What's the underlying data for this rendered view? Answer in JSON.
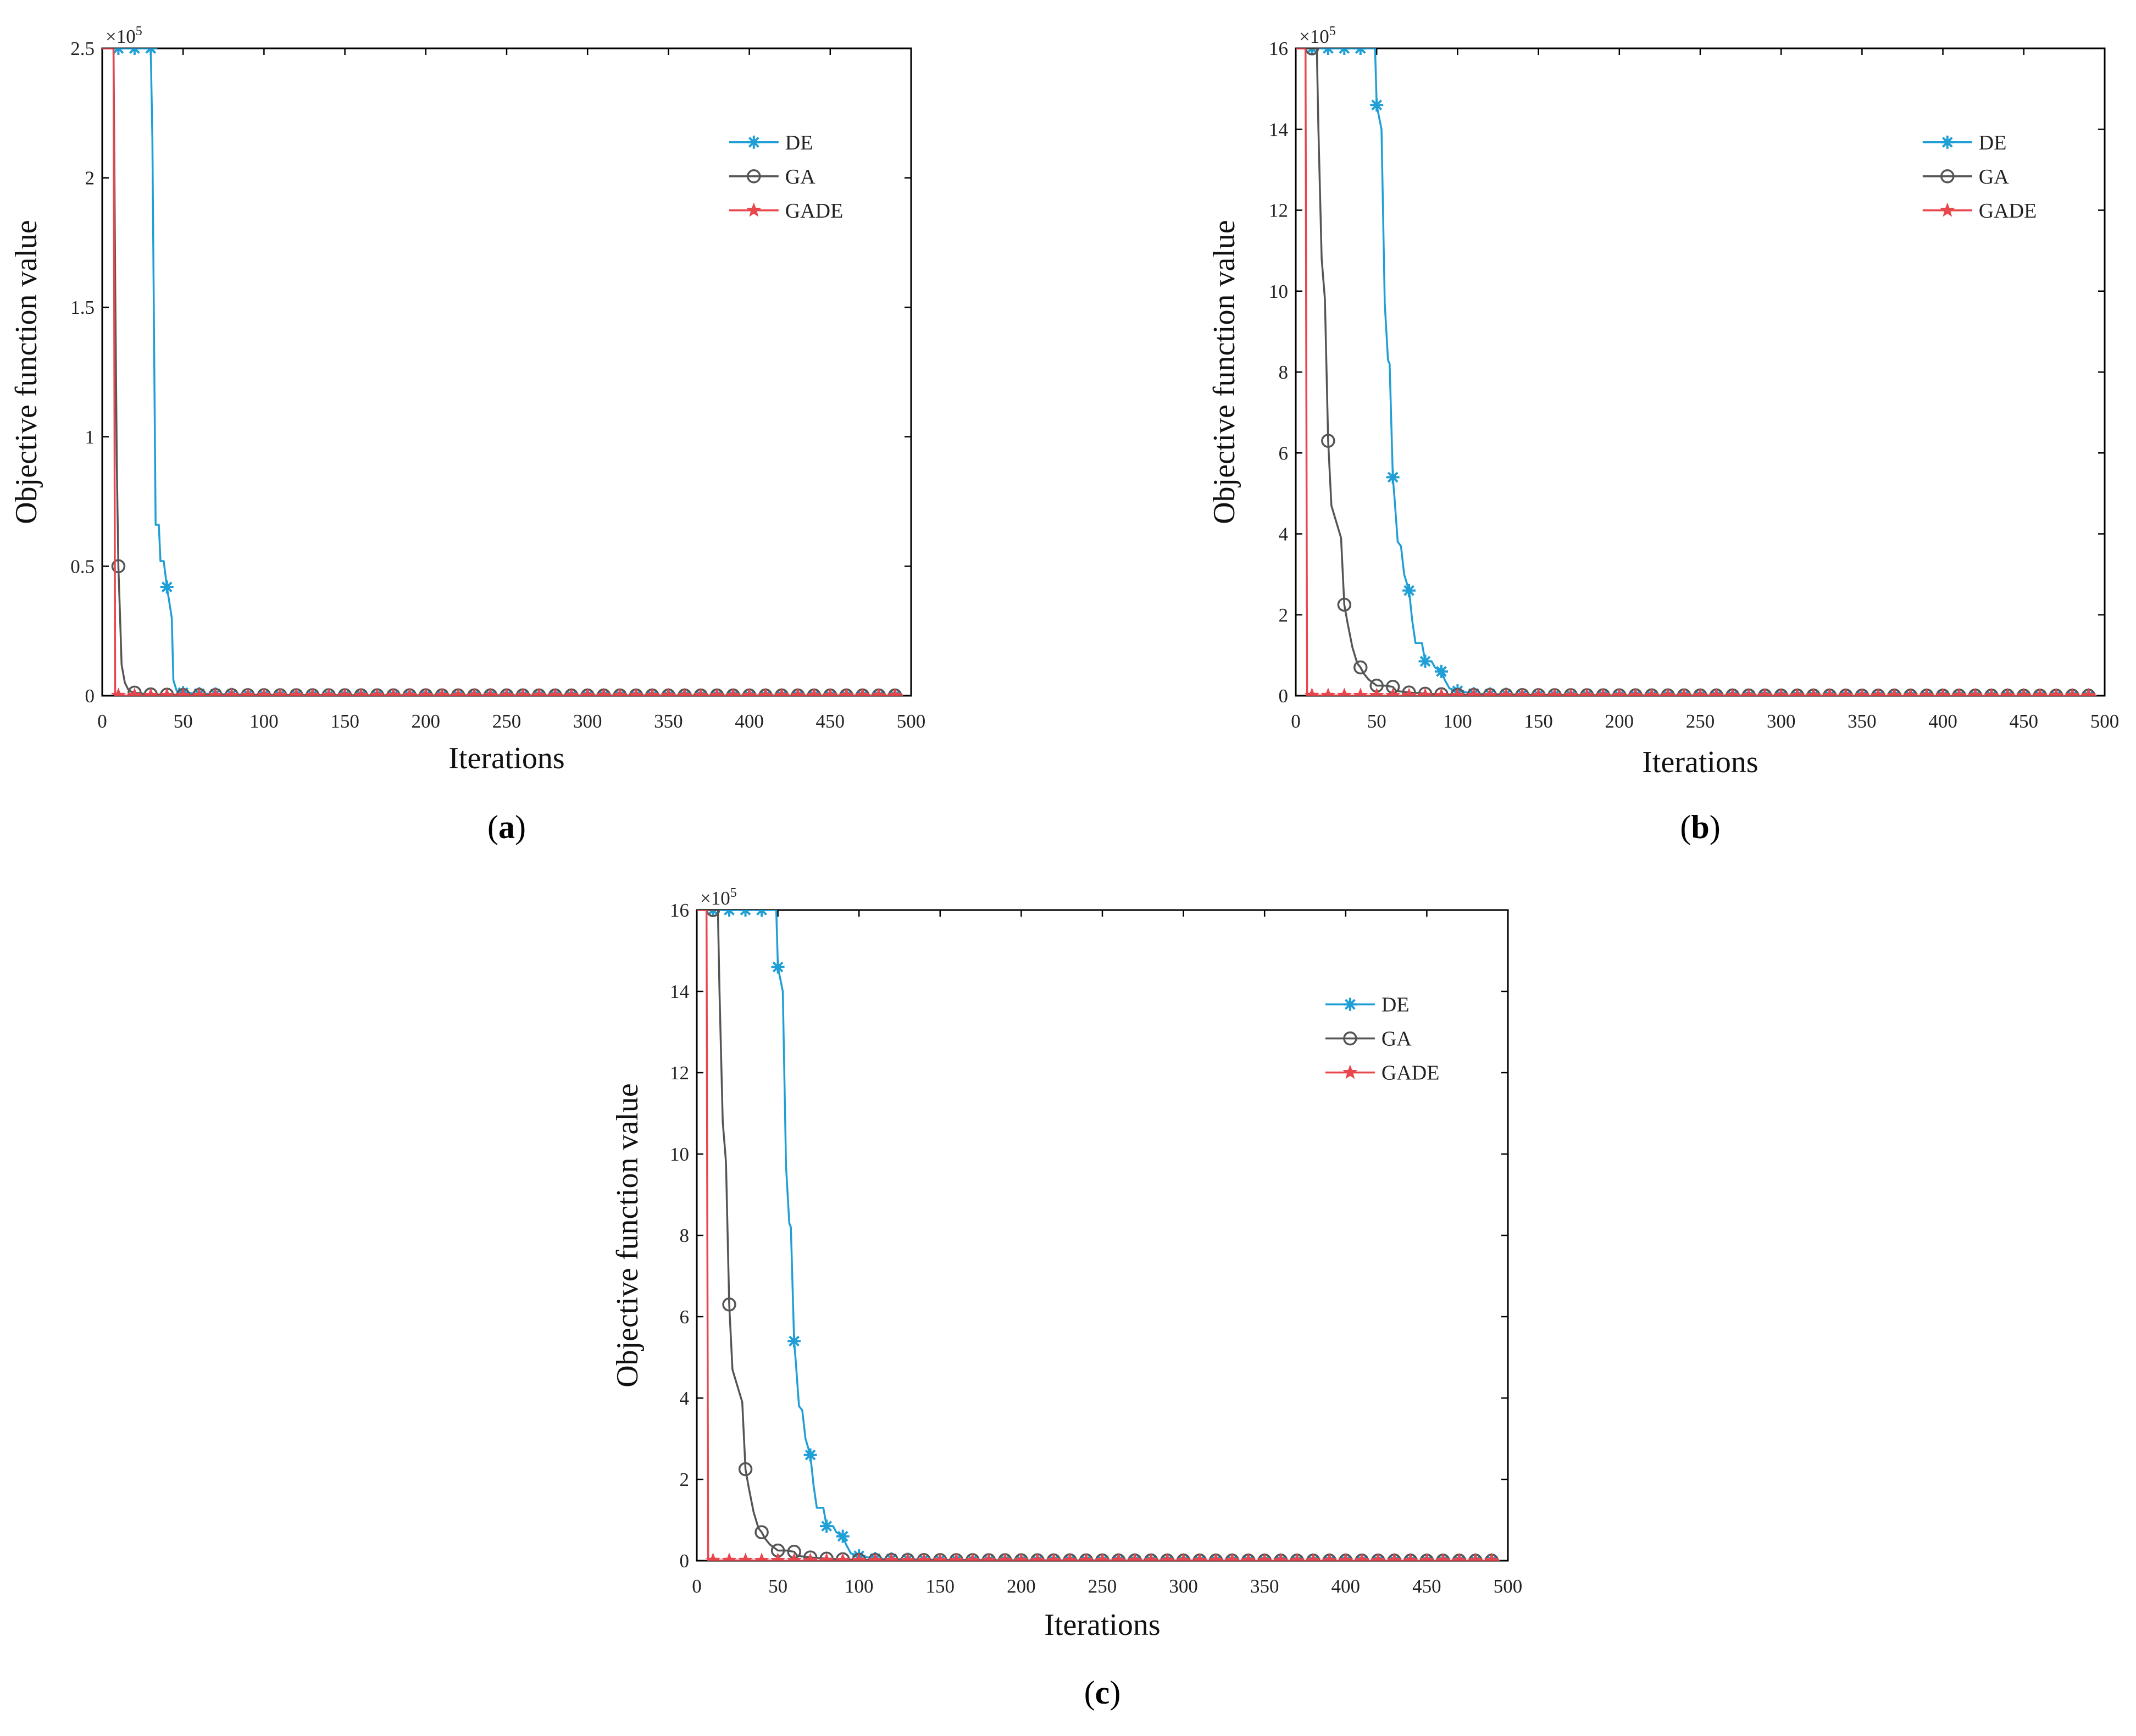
{
  "chart_data": [
    {
      "type": "line",
      "panel_label": "a",
      "xlabel": "Iterations",
      "ylabel": "Objective function value",
      "xlim": [
        0,
        500
      ],
      "ylim": [
        0,
        250000
      ],
      "xticks": [
        0,
        50,
        100,
        150,
        200,
        250,
        300,
        350,
        400,
        450,
        500
      ],
      "yticks": [
        0,
        0.5,
        1,
        1.5,
        2,
        2.5
      ],
      "y_tick_labels": [
        "0",
        "0.5",
        "1",
        "1.5",
        "2",
        "2.5"
      ],
      "y_multiplier_base": "×10",
      "y_multiplier_exponent": "5",
      "legend_position": "top-right",
      "grid": false,
      "series": [
        {
          "name": "DE",
          "color": "#1f9fd6",
          "marker": "asterisk",
          "x": [
            0,
            30,
            31,
            33,
            35,
            36,
            38,
            40,
            41,
            43,
            44,
            46,
            50,
            60,
            80,
            100,
            200,
            300,
            400,
            495
          ],
          "y": [
            250000,
            250000,
            215000,
            66000,
            66000,
            52000,
            52000,
            42000,
            38000,
            30000,
            6000,
            2000,
            1200,
            800,
            500,
            300,
            200,
            150,
            100,
            100
          ]
        },
        {
          "name": "GA",
          "color": "#555555",
          "marker": "circle",
          "x": [
            0,
            7,
            8,
            9,
            10,
            11,
            12,
            14,
            16,
            18,
            20,
            25,
            30,
            50,
            100,
            200,
            300,
            400,
            495
          ],
          "y": [
            250000,
            250000,
            160000,
            90000,
            50000,
            31000,
            12000,
            5000,
            2500,
            1500,
            1200,
            800,
            500,
            300,
            200,
            150,
            100,
            100,
            100
          ]
        },
        {
          "name": "GADE",
          "color": "#e8474d",
          "marker": "star",
          "x": [
            0,
            7,
            8,
            10,
            50,
            100,
            200,
            300,
            400,
            495
          ],
          "y": [
            250000,
            250000,
            200,
            100,
            50,
            50,
            50,
            50,
            50,
            50
          ]
        }
      ]
    },
    {
      "type": "line",
      "panel_label": "b",
      "xlabel": "Iterations",
      "ylabel": "Objective function value",
      "xlim": [
        0,
        500
      ],
      "ylim": [
        0,
        1600000
      ],
      "xticks": [
        0,
        50,
        100,
        150,
        200,
        250,
        300,
        350,
        400,
        450,
        500
      ],
      "yticks": [
        0,
        2,
        4,
        6,
        8,
        10,
        12,
        14,
        16
      ],
      "y_tick_labels": [
        "0",
        "2",
        "4",
        "6",
        "8",
        "10",
        "12",
        "14",
        "16"
      ],
      "y_multiplier_base": "×10",
      "y_multiplier_exponent": "5",
      "legend_position": "top-right",
      "grid": false,
      "series": [
        {
          "name": "DE",
          "color": "#1f9fd6",
          "marker": "asterisk",
          "x": [
            0,
            49,
            50,
            53,
            55,
            57,
            58,
            60,
            61,
            63,
            65,
            67,
            70,
            72,
            74,
            78,
            80,
            84,
            86,
            90,
            92,
            95,
            100,
            110,
            150,
            200,
            300,
            400,
            495
          ],
          "y": [
            1600000,
            1600000,
            1460000,
            1400000,
            970000,
            830000,
            820000,
            540000,
            490000,
            380000,
            370000,
            300000,
            260000,
            185000,
            130000,
            130000,
            85000,
            85000,
            70000,
            60000,
            40000,
            18000,
            12000,
            5000,
            2000,
            1000,
            500,
            300,
            200
          ]
        },
        {
          "name": "GA",
          "color": "#555555",
          "marker": "circle",
          "x": [
            0,
            13,
            14,
            16,
            18,
            20,
            22,
            25,
            28,
            30,
            32,
            35,
            38,
            40,
            42,
            45,
            50,
            55,
            60,
            62,
            70,
            80,
            100,
            200,
            300,
            400,
            495
          ],
          "y": [
            1600000,
            1600000,
            1400000,
            1080000,
            980000,
            630000,
            470000,
            430000,
            390000,
            225000,
            180000,
            120000,
            80000,
            70000,
            55000,
            40000,
            25000,
            25000,
            22000,
            12000,
            8000,
            5000,
            2000,
            1000,
            500,
            300,
            200
          ]
        },
        {
          "name": "GADE",
          "color": "#e8474d",
          "marker": "star",
          "x": [
            0,
            6,
            7,
            10,
            50,
            100,
            200,
            300,
            400,
            495
          ],
          "y": [
            1600000,
            1600000,
            1500,
            800,
            400,
            300,
            200,
            150,
            100,
            100
          ]
        }
      ]
    },
    {
      "type": "line",
      "panel_label": "c",
      "xlabel": "Iterations",
      "ylabel": "Objective function value",
      "xlim": [
        0,
        500
      ],
      "ylim": [
        0,
        1600000
      ],
      "xticks": [
        0,
        50,
        100,
        150,
        200,
        250,
        300,
        350,
        400,
        450,
        500
      ],
      "yticks": [
        0,
        2,
        4,
        6,
        8,
        10,
        12,
        14,
        16
      ],
      "y_tick_labels": [
        "0",
        "2",
        "4",
        "6",
        "8",
        "10",
        "12",
        "14",
        "16"
      ],
      "y_multiplier_base": "×10",
      "y_multiplier_exponent": "5",
      "legend_position": "top-right",
      "grid": false,
      "series": [
        {
          "name": "DE",
          "color": "#1f9fd6",
          "marker": "asterisk",
          "x": [
            0,
            49,
            50,
            53,
            55,
            57,
            58,
            60,
            61,
            63,
            65,
            67,
            70,
            72,
            74,
            78,
            80,
            84,
            86,
            90,
            92,
            95,
            100,
            110,
            150,
            200,
            300,
            400,
            495
          ],
          "y": [
            1600000,
            1600000,
            1460000,
            1400000,
            970000,
            830000,
            820000,
            540000,
            490000,
            380000,
            370000,
            300000,
            260000,
            185000,
            130000,
            130000,
            85000,
            85000,
            70000,
            60000,
            40000,
            18000,
            12000,
            5000,
            2000,
            1000,
            500,
            300,
            200
          ]
        },
        {
          "name": "GA",
          "color": "#555555",
          "marker": "circle",
          "x": [
            0,
            13,
            14,
            16,
            18,
            20,
            22,
            25,
            28,
            30,
            32,
            35,
            38,
            40,
            42,
            45,
            50,
            55,
            60,
            62,
            70,
            80,
            100,
            200,
            300,
            400,
            495
          ],
          "y": [
            1600000,
            1600000,
            1400000,
            1080000,
            980000,
            630000,
            470000,
            430000,
            390000,
            225000,
            180000,
            120000,
            80000,
            70000,
            55000,
            40000,
            25000,
            25000,
            22000,
            12000,
            8000,
            5000,
            2000,
            1000,
            500,
            300,
            200
          ]
        },
        {
          "name": "GADE",
          "color": "#e8474d",
          "marker": "star",
          "x": [
            0,
            6,
            7,
            10,
            50,
            100,
            200,
            300,
            400,
            495
          ],
          "y": [
            1600000,
            1600000,
            1500,
            800,
            400,
            300,
            200,
            150,
            100,
            100
          ]
        }
      ]
    }
  ]
}
